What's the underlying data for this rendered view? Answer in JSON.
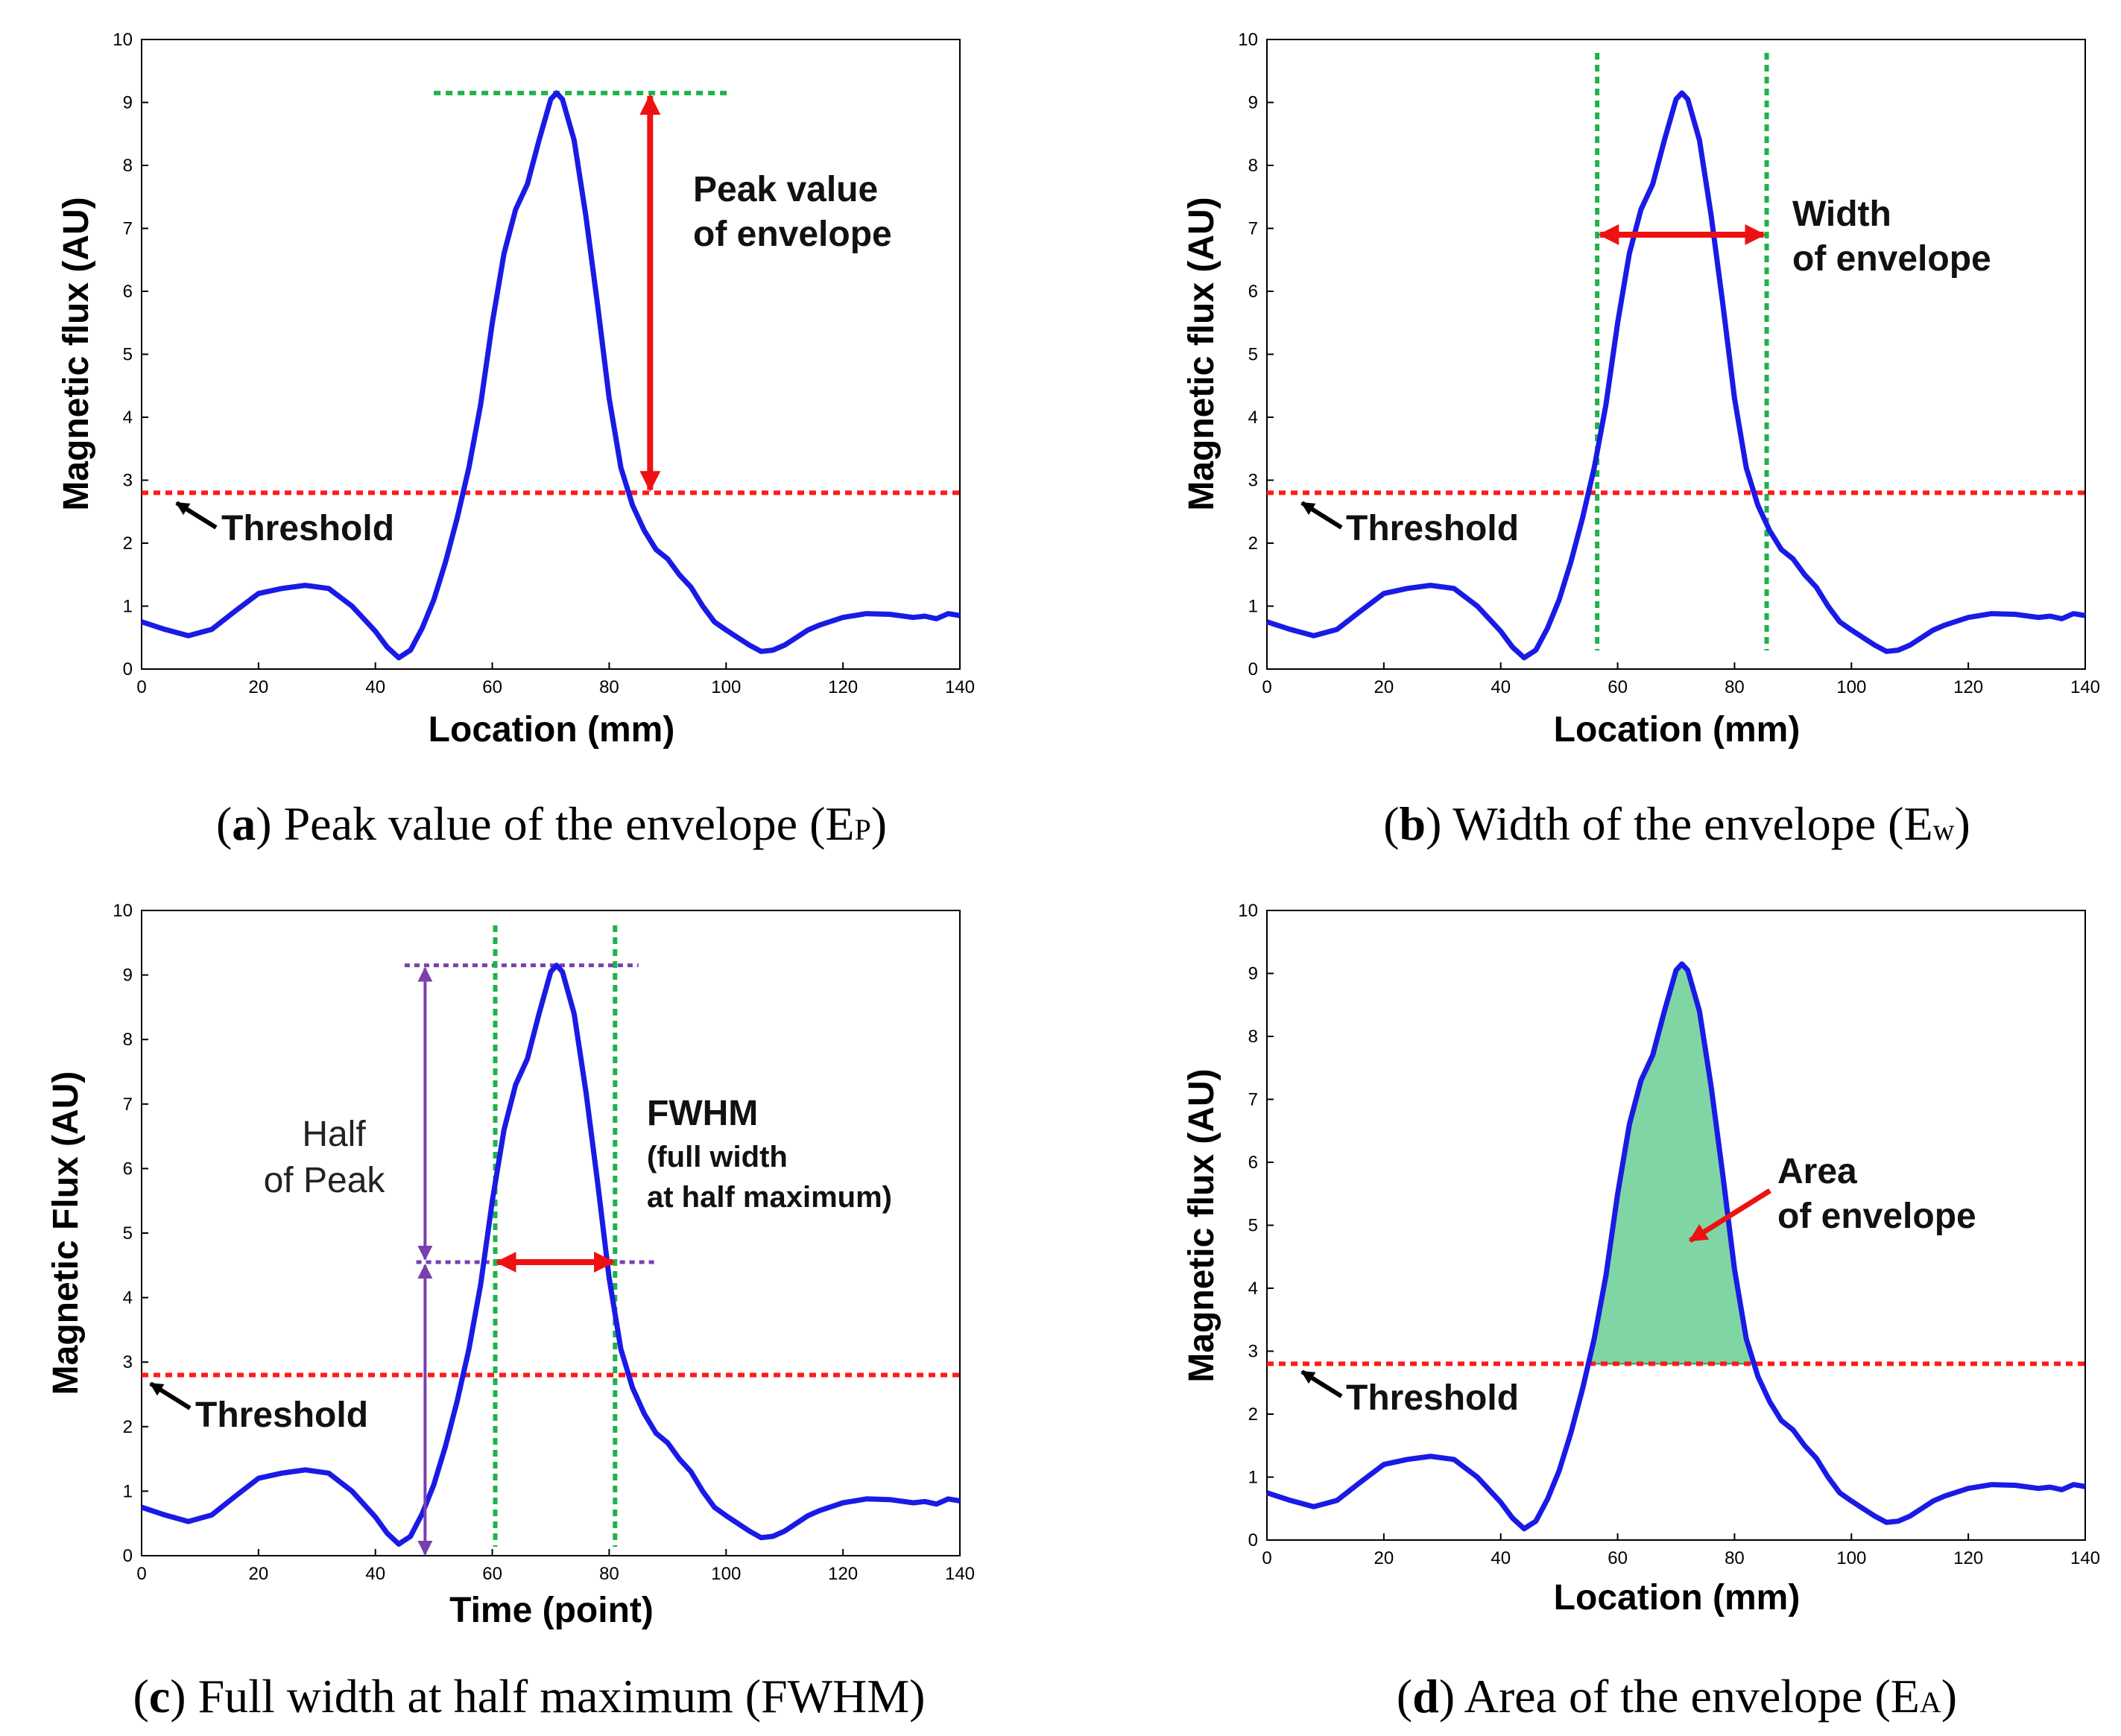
{
  "colors": {
    "curve": "#1a1ae6",
    "threshold": "#ff1a1a",
    "guide_green": "#1fb24a",
    "arrow_red": "#ee1111",
    "purple": "#7a3fae",
    "fill_area": "#7fd6a4",
    "arrow_black": "#000000"
  },
  "chart_data": [
    {
      "id": "a",
      "type": "line",
      "xlabel": "Location (mm)",
      "ylabel": "Magnetic flux (AU)",
      "xlim": [
        0,
        140
      ],
      "ylim": [
        0,
        10
      ],
      "xticks": [
        "0",
        "20",
        "40",
        "60",
        "80",
        "100",
        "120",
        "140"
      ],
      "yticks": [
        "0",
        "1",
        "2",
        "3",
        "4",
        "5",
        "6",
        "7",
        "8",
        "9",
        "10"
      ],
      "threshold": 2.8,
      "threshold_label": "Threshold",
      "annotation": [
        "Peak value",
        "of envelope"
      ],
      "caption": {
        "letter": "a",
        "text": " Peak value of the envelope (E",
        "sub": "P",
        "end": ")"
      }
    },
    {
      "id": "b",
      "type": "line",
      "xlabel": "Location (mm)",
      "ylabel": "Magnetic flux (AU)",
      "xlim": [
        0,
        140
      ],
      "ylim": [
        0,
        10
      ],
      "xticks": [
        "0",
        "20",
        "40",
        "60",
        "80",
        "100",
        "120",
        "140"
      ],
      "yticks": [
        "0",
        "1",
        "2",
        "3",
        "4",
        "5",
        "6",
        "7",
        "8",
        "9",
        "10"
      ],
      "threshold": 2.8,
      "threshold_label": "Threshold",
      "width_bounds": [
        56.5,
        85.5
      ],
      "annotation": [
        "Width",
        "of envelope"
      ],
      "caption": {
        "letter": "b",
        "text": " Width of the envelope (E",
        "sub": "w",
        "end": ")"
      }
    },
    {
      "id": "c",
      "type": "line",
      "xlabel": "Time (point)",
      "ylabel": "Magnetic Flux (AU)",
      "xlim": [
        0,
        140
      ],
      "ylim": [
        0,
        10
      ],
      "xticks": [
        "0",
        "20",
        "40",
        "60",
        "80",
        "100",
        "120",
        "140"
      ],
      "yticks": [
        "0",
        "1",
        "2",
        "3",
        "4",
        "5",
        "6",
        "7",
        "8",
        "9",
        "10"
      ],
      "threshold": 2.8,
      "threshold_label": "Threshold",
      "half_max": 4.55,
      "fwhm_bounds": [
        60.5,
        81
      ],
      "annotation_left": [
        "Half",
        "of Peak"
      ],
      "annotation_title": "FWHM",
      "annotation_sub": [
        "(full width",
        "at half maximum)"
      ],
      "caption": {
        "letter": "c",
        "text": " Full width at half maximum (FWHM)",
        "sub": "",
        "end": ""
      }
    },
    {
      "id": "d",
      "type": "area",
      "xlabel": "Location (mm)",
      "ylabel": "Magnetic flux (AU)",
      "xlim": [
        0,
        140
      ],
      "ylim": [
        0,
        10
      ],
      "xticks": [
        "0",
        "20",
        "40",
        "60",
        "80",
        "100",
        "120",
        "140"
      ],
      "yticks": [
        "0",
        "1",
        "2",
        "3",
        "4",
        "5",
        "6",
        "7",
        "8",
        "9",
        "10"
      ],
      "threshold": 2.8,
      "threshold_label": "Threshold",
      "annotation": [
        "Area",
        "of envelope"
      ],
      "caption": {
        "letter": "d",
        "text": " Area of the envelope (E",
        "sub": "A",
        "end": ")"
      }
    }
  ],
  "signal": {
    "x": [
      0,
      4,
      8,
      12,
      16,
      20,
      24,
      28,
      32,
      36,
      40,
      42,
      44,
      46,
      48,
      50,
      52,
      54,
      56,
      58,
      60,
      62,
      64,
      66,
      68,
      70,
      71,
      72,
      74,
      76,
      78,
      80,
      82,
      84,
      86,
      88,
      90,
      92,
      94,
      96,
      98,
      100,
      102,
      104,
      106,
      108,
      110,
      112,
      114,
      116,
      120,
      124,
      128,
      132,
      134,
      136,
      138,
      140
    ],
    "y": [
      0.75,
      0.63,
      0.53,
      0.63,
      0.92,
      1.2,
      1.28,
      1.33,
      1.28,
      1.0,
      0.6,
      0.35,
      0.18,
      0.3,
      0.65,
      1.1,
      1.7,
      2.4,
      3.2,
      4.2,
      5.5,
      6.6,
      7.3,
      7.7,
      8.4,
      9.05,
      9.15,
      9.05,
      8.4,
      7.2,
      5.8,
      4.3,
      3.2,
      2.6,
      2.2,
      1.9,
      1.75,
      1.5,
      1.3,
      1.0,
      0.75,
      0.62,
      0.5,
      0.38,
      0.28,
      0.3,
      0.38,
      0.5,
      0.62,
      0.7,
      0.82,
      0.88,
      0.87,
      0.82,
      0.84,
      0.8,
      0.88,
      0.85
    ]
  }
}
